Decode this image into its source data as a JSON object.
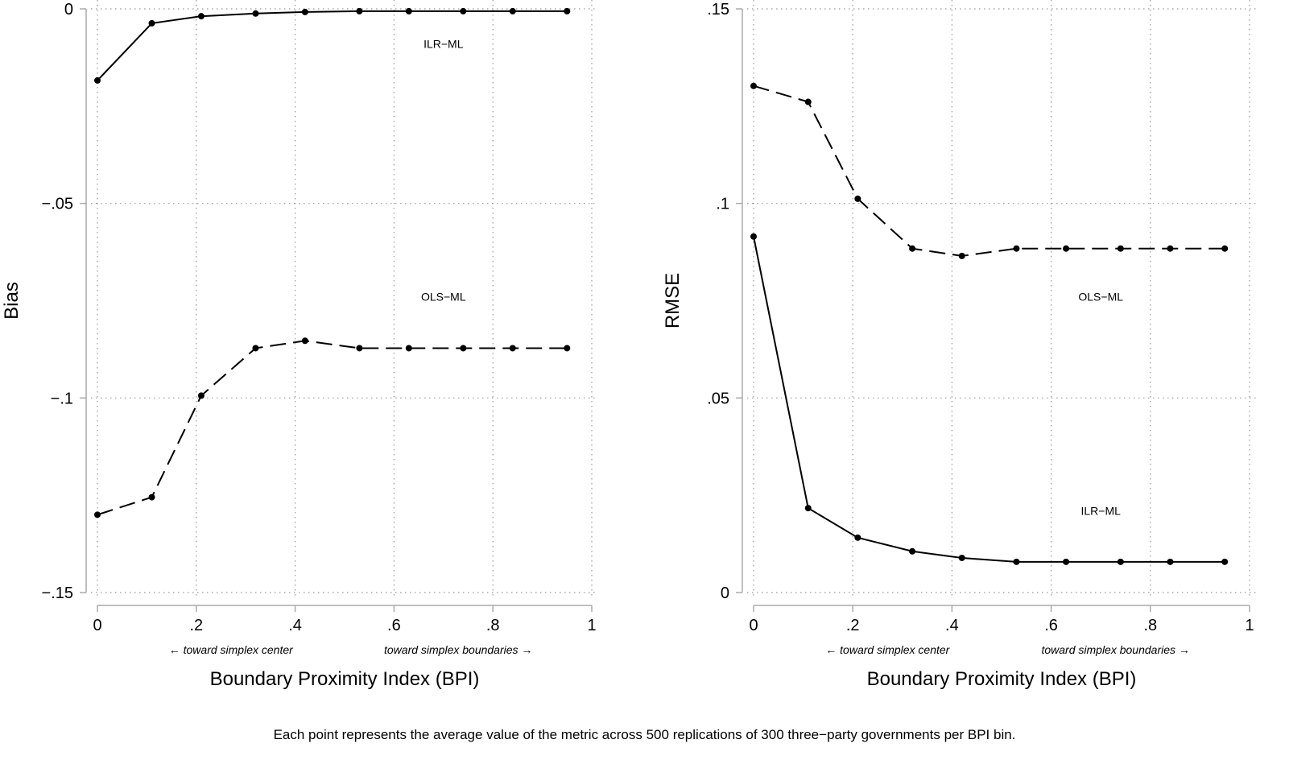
{
  "caption": "Each point represents the average value of the metric across 500 replications of 300 three−party governments per BPI bin.",
  "chart_data": [
    {
      "type": "line",
      "title": "",
      "xlabel": "Boundary Proximity Index (BPI)",
      "ylabel": "Bias",
      "xlim": [
        0,
        1
      ],
      "ylim": [
        -0.15,
        0
      ],
      "xticks": [
        0,
        0.2,
        0.4,
        0.6,
        0.8,
        1
      ],
      "xtick_labels": [
        "0",
        ".2",
        ".4",
        ".6",
        ".8",
        "1"
      ],
      "yticks": [
        0,
        -0.05,
        -0.1,
        -0.15
      ],
      "ytick_labels": [
        "0",
        "−.05",
        "−.1",
        "−.15"
      ],
      "grid": true,
      "annotations_below": [
        "← toward simplex center",
        "toward simplex boundaries →"
      ],
      "x": [
        0,
        0.11,
        0.21,
        0.32,
        0.42,
        0.53,
        0.63,
        0.74,
        0.84,
        0.95
      ],
      "series": [
        {
          "name": "ILR−ML",
          "style": "solid",
          "label_at": [
            0.7,
            -0.01
          ],
          "values": [
            -0.0184,
            -0.0037,
            -0.0019,
            -0.0012,
            -0.0008,
            -0.0006,
            -0.0006,
            -0.0006,
            -0.0006,
            -0.0006
          ]
        },
        {
          "name": "OLS−ML",
          "style": "dashed",
          "label_at": [
            0.7,
            -0.075
          ],
          "values": [
            -0.13,
            -0.1255,
            -0.0994,
            -0.0872,
            -0.0853,
            -0.0872,
            -0.0872,
            -0.0872,
            -0.0872,
            -0.0872
          ]
        }
      ]
    },
    {
      "type": "line",
      "title": "",
      "xlabel": "Boundary Proximity Index (BPI)",
      "ylabel": "RMSE",
      "xlim": [
        0,
        1
      ],
      "ylim": [
        0,
        0.15
      ],
      "xticks": [
        0,
        0.2,
        0.4,
        0.6,
        0.8,
        1
      ],
      "xtick_labels": [
        "0",
        ".2",
        ".4",
        ".6",
        ".8",
        "1"
      ],
      "yticks": [
        0.15,
        0.1,
        0.05,
        0
      ],
      "ytick_labels": [
        ".15",
        ".1",
        ".05",
        "0"
      ],
      "grid": true,
      "annotations_below": [
        "← toward simplex center",
        "toward simplex boundaries →"
      ],
      "x": [
        0,
        0.11,
        0.21,
        0.32,
        0.42,
        0.53,
        0.63,
        0.74,
        0.84,
        0.95
      ],
      "series": [
        {
          "name": "OLS−ML",
          "style": "dashed",
          "label_at": [
            0.7,
            0.075
          ],
          "values": [
            0.1302,
            0.1261,
            0.1012,
            0.0884,
            0.0865,
            0.0884,
            0.0884,
            0.0884,
            0.0884,
            0.0884
          ]
        },
        {
          "name": "ILR−ML",
          "style": "solid",
          "label_at": [
            0.7,
            0.02
          ],
          "values": [
            0.0915,
            0.0217,
            0.0141,
            0.0106,
            0.0089,
            0.0079,
            0.0079,
            0.0079,
            0.0079,
            0.0079
          ]
        }
      ]
    }
  ]
}
